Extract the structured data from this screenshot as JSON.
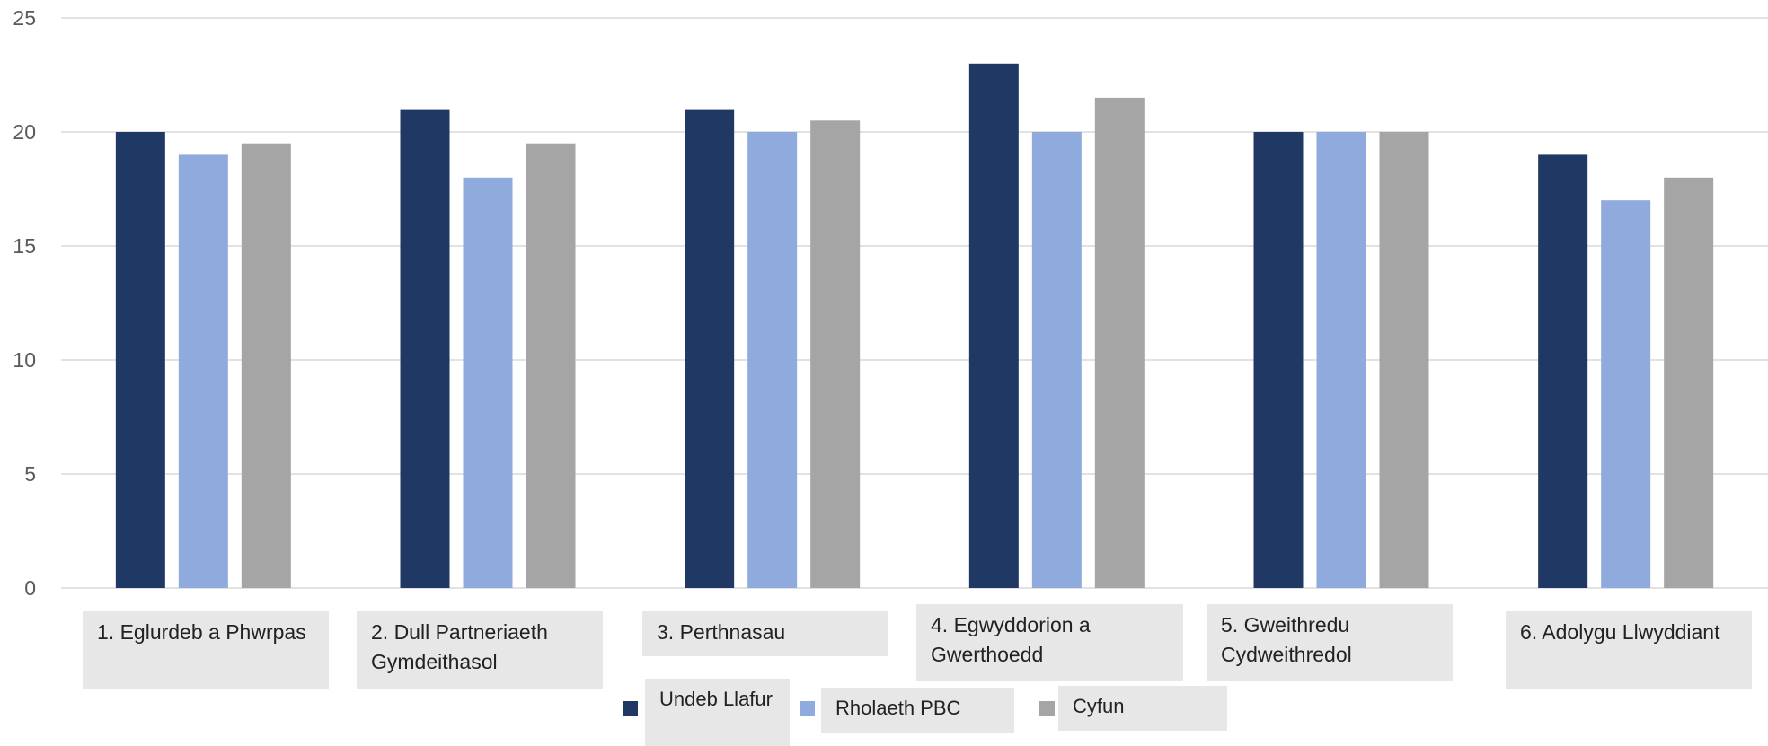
{
  "chart_data": {
    "type": "bar",
    "categories": [
      "1. Eglurdeb a Phwrpas",
      "2. Dull Partneriaeth Gymdeithasol",
      "3. Perthnasau",
      "4. Egwyddorion a Gwerthoedd",
      "5. Gweithredu Cydweithredol",
      "6. Adolygu Llwyddiant"
    ],
    "series": [
      {
        "name": "Undeb Llafur",
        "values": [
          20,
          21,
          21,
          23,
          20,
          19
        ]
      },
      {
        "name": "Rholaeth PBC",
        "values": [
          19,
          18,
          20,
          20,
          20,
          17
        ]
      },
      {
        "name": "Cyfun",
        "values": [
          19.5,
          19.5,
          20.5,
          21.5,
          20,
          18
        ]
      }
    ],
    "ylim": [
      0,
      25
    ],
    "yticks": [
      0,
      5,
      10,
      15,
      20,
      25
    ],
    "grid": true,
    "legend_position": "bottom",
    "colors": [
      "#203864",
      "#8faadc",
      "#a5a5a5"
    ]
  }
}
